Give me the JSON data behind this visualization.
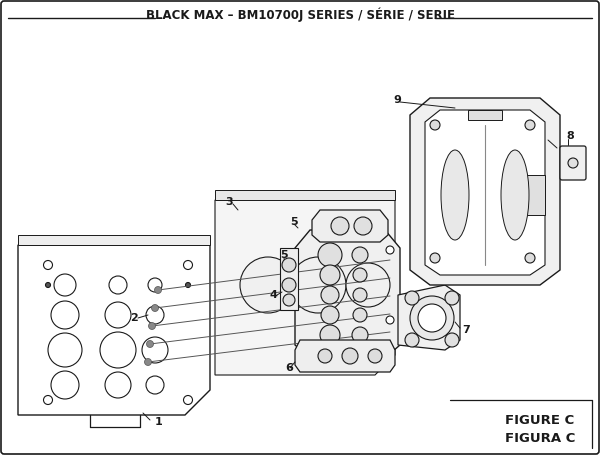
{
  "title": "BLACK MAX – BM10700J SERIES / SÉRIE / SERIE",
  "figure_label": "FIGURE C",
  "figura_label": "FIGURA C",
  "bg_color": "#ffffff",
  "lc": "#1a1a1a",
  "title_fontsize": 8.0,
  "label_fontsize": 7.5,
  "fig_label_fontsize": 9.0
}
